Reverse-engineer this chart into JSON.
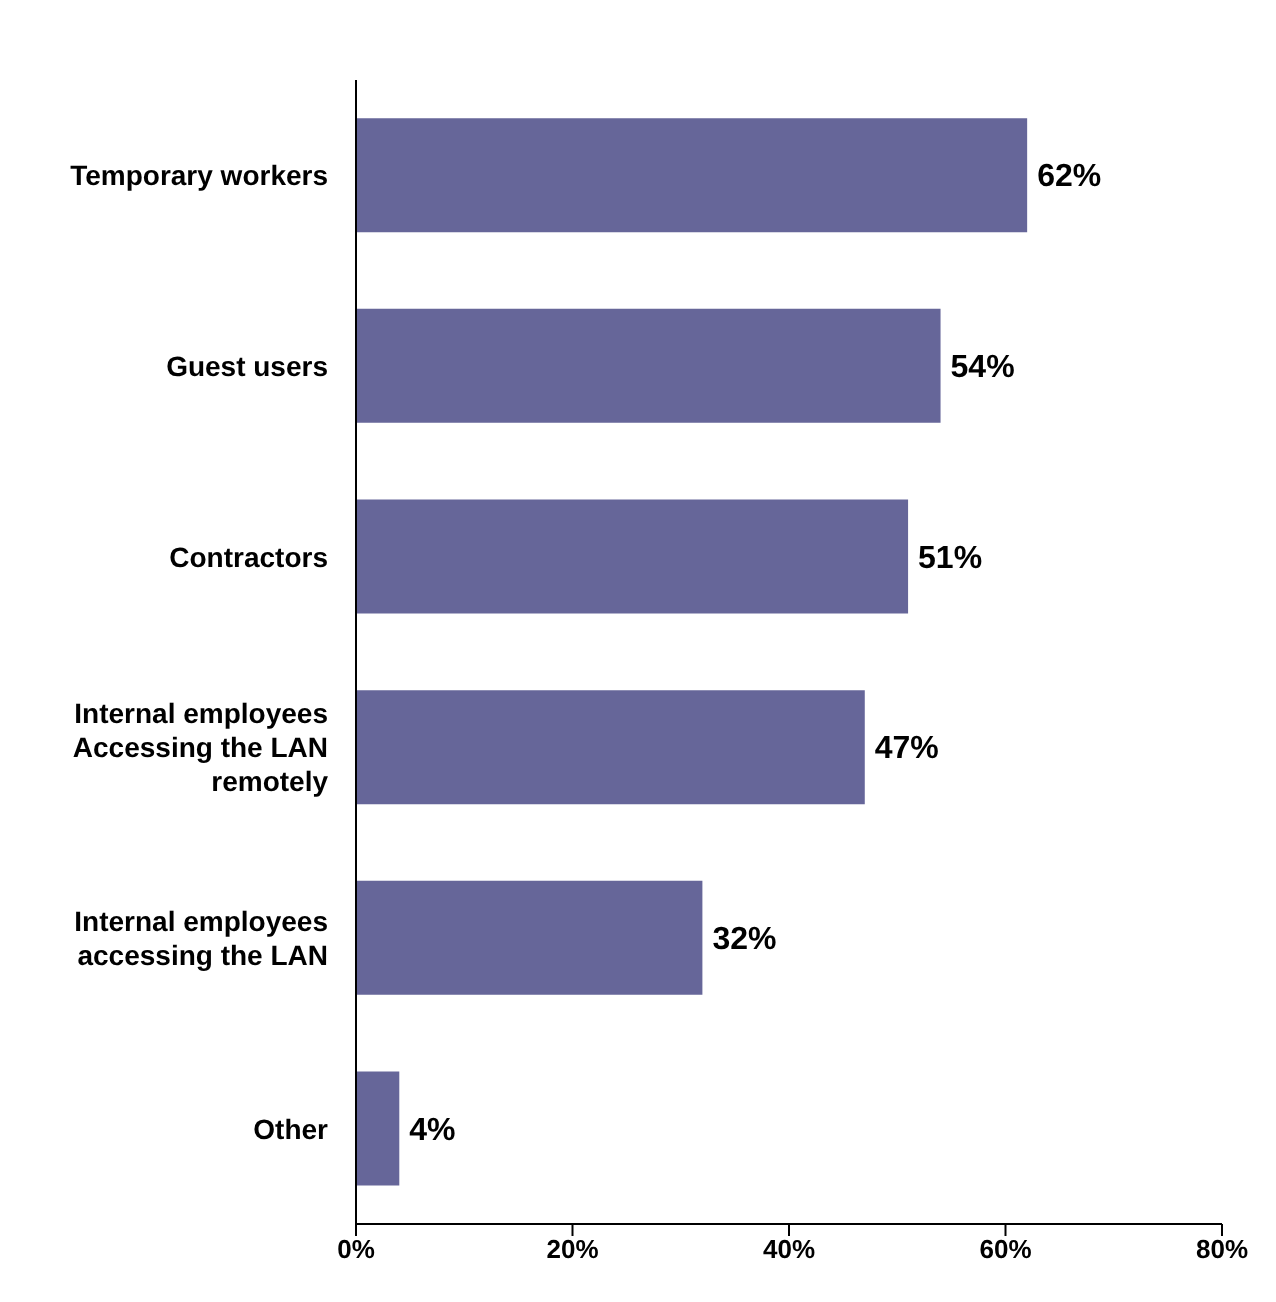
{
  "chart_data": {
    "type": "bar",
    "orientation": "horizontal",
    "categories": [
      "Temporary workers",
      "Guest users",
      "Contractors",
      "Internal employees Accessing the LAN remotely",
      "Internal employees accessing the LAN",
      "Other"
    ],
    "values": [
      62,
      54,
      51,
      47,
      32,
      4
    ],
    "value_labels": [
      "62%",
      "54%",
      "51%",
      "47%",
      "32%",
      "4%"
    ],
    "color": "#666699",
    "xlim": [
      0,
      80
    ],
    "xticks": [
      {
        "value": 0,
        "label": "0%"
      },
      {
        "value": 20,
        "label": "20%"
      },
      {
        "value": 40,
        "label": "40%"
      },
      {
        "value": 60,
        "label": "60%"
      },
      {
        "value": 80,
        "label": "80%"
      }
    ],
    "grid": false
  }
}
